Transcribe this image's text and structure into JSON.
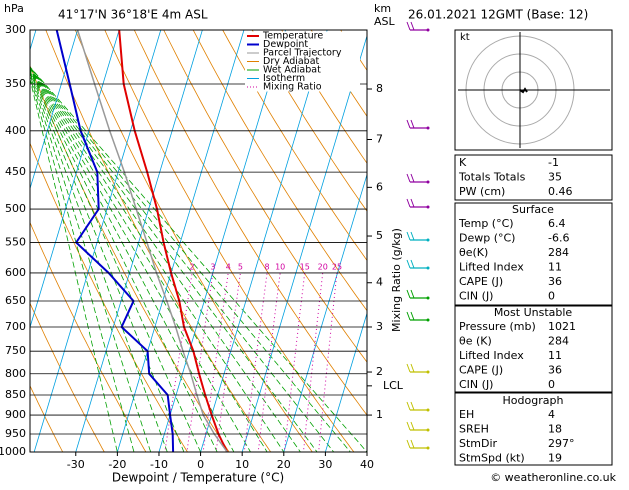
{
  "header": {
    "pressure_unit": "hPa",
    "location": "41°17'N 36°18'E 4m ASL",
    "km_unit": "km",
    "asl": "ASL",
    "datetime": "26.01.2021 12GMT (Base: 12)"
  },
  "chart_data": {
    "type": "skew-t",
    "x_label": "Dewpoint / Temperature (°C)",
    "mixing_label": "Mixing Ratio (g/kg)",
    "y": [
      1000,
      950,
      900,
      850,
      800,
      750,
      700,
      650,
      600,
      550,
      500,
      450,
      400,
      350,
      300
    ],
    "series": [
      {
        "name": "Temperature",
        "color": "#e00000",
        "values": [
          6.4,
          3,
          0,
          -3,
          -6,
          -9,
          -13,
          -16,
          -20,
          -24,
          -28,
          -33,
          -39,
          -45,
          -50
        ]
      },
      {
        "name": "Dewpoint",
        "color": "#0000cc",
        "values": [
          -6.6,
          -8,
          -10,
          -12,
          -18,
          -20,
          -28,
          -27,
          -35,
          -45,
          -42,
          -45,
          -52,
          -58,
          -65
        ]
      },
      {
        "name": "Parcel Trajectory",
        "color": "#999999",
        "values": [
          6.4,
          2,
          -2,
          -5,
          -8,
          -11.5,
          -15,
          -19,
          -23.5,
          -28,
          -33,
          -38.5,
          -45,
          -52,
          -60
        ]
      }
    ],
    "legend_extra": [
      {
        "name": "Dry Adiabat",
        "color": "#e08000"
      },
      {
        "name": "Wet Adiabat",
        "color": "#00a000"
      },
      {
        "name": "Isotherm",
        "color": "#00a0e0"
      },
      {
        "name": "Mixing Ratio",
        "color": "#d000a0"
      }
    ],
    "xlim": [
      -41,
      40
    ],
    "xticks": [
      -30,
      -20,
      -10,
      0,
      10,
      20,
      30,
      40
    ],
    "ylim": [
      1000,
      300
    ],
    "log_y": true,
    "yticks": [
      300,
      350,
      400,
      450,
      500,
      550,
      600,
      650,
      700,
      750,
      800,
      850,
      900,
      950,
      1000
    ],
    "km_ticks": [
      1,
      2,
      3,
      4,
      5,
      6,
      7,
      8
    ],
    "km_tick_pressures": [
      900,
      796,
      700,
      617,
      540,
      470,
      410,
      355
    ],
    "lcl": {
      "label": "LCL",
      "pressure": 828
    },
    "mixing_ratios": [
      2,
      3,
      4,
      5,
      8,
      10,
      15,
      20,
      25
    ]
  },
  "hodograph": {
    "unit": "kt"
  },
  "indices": [
    [
      "K",
      "-1"
    ],
    [
      "Totals Totals",
      "35"
    ],
    [
      "PW (cm)",
      "0.46"
    ]
  ],
  "surface": {
    "title": "Surface",
    "rows": [
      [
        "Temp (°C)",
        "6.4"
      ],
      [
        "Dewp (°C)",
        "-6.6"
      ],
      [
        "θe(K)",
        "284"
      ],
      [
        "Lifted Index",
        "11"
      ],
      [
        "CAPE (J)",
        "36"
      ],
      [
        "CIN (J)",
        "0"
      ]
    ]
  },
  "most_unstable": {
    "title": "Most Unstable",
    "rows": [
      [
        "Pressure (mb)",
        "1021"
      ],
      [
        "θe (K)",
        "284"
      ],
      [
        "Lifted Index",
        "11"
      ],
      [
        "CAPE (J)",
        "36"
      ],
      [
        "CIN (J)",
        "0"
      ]
    ]
  },
  "hodo_table": {
    "title": "Hodograph",
    "rows": [
      [
        "EH",
        "4"
      ],
      [
        "SREH",
        "18"
      ],
      [
        "StmDir",
        "297°"
      ],
      [
        "StmSpd (kt)",
        "19"
      ]
    ]
  },
  "footer": "© weatheronline.co.uk"
}
